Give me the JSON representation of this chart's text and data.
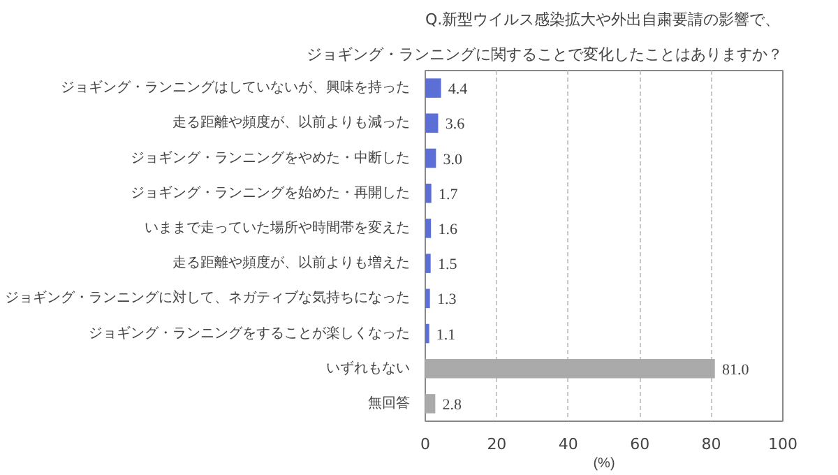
{
  "chart_data": {
    "type": "bar",
    "orientation": "horizontal",
    "title": "Q.新型ウイルス感染拡大や外出自粛要請の影響で、",
    "subtitle": "ジョギング・ランニングに関することで変化したことはありますか？",
    "categories": [
      "ジョギング・ランニングはしていないが、興味を持った",
      "走る距離や頻度が、以前よりも減った",
      "ジョギング・ランニングをやめた・中断した",
      "ジョギング・ランニングを始めた・再開した",
      "いままで走っていた場所や時間帯を変えた",
      "走る距離や頻度が、以前よりも増えた",
      "ジョギング・ランニングに対して、ネガティブな気持ちになった",
      "ジョギング・ランニングをすることが楽しくなった",
      "いずれもない",
      "無回答"
    ],
    "values": [
      4.4,
      3.6,
      3.0,
      1.7,
      1.6,
      1.5,
      1.3,
      1.1,
      81.0,
      2.8
    ],
    "colors": [
      "#5b6fd6",
      "#5b6fd6",
      "#5b6fd6",
      "#5b6fd6",
      "#5b6fd6",
      "#5b6fd6",
      "#5b6fd6",
      "#5b6fd6",
      "#aaaaaa",
      "#aaaaaa"
    ],
    "value_labels": [
      "4.4",
      "3.6",
      "3.0",
      "1.7",
      "1.6",
      "1.5",
      "1.3",
      "1.1",
      "81.0",
      "2.8"
    ],
    "xlabel": "(%)",
    "xlim": [
      0,
      100
    ],
    "xticks": [
      0,
      20,
      40,
      60,
      80,
      100
    ],
    "grid": "x"
  }
}
